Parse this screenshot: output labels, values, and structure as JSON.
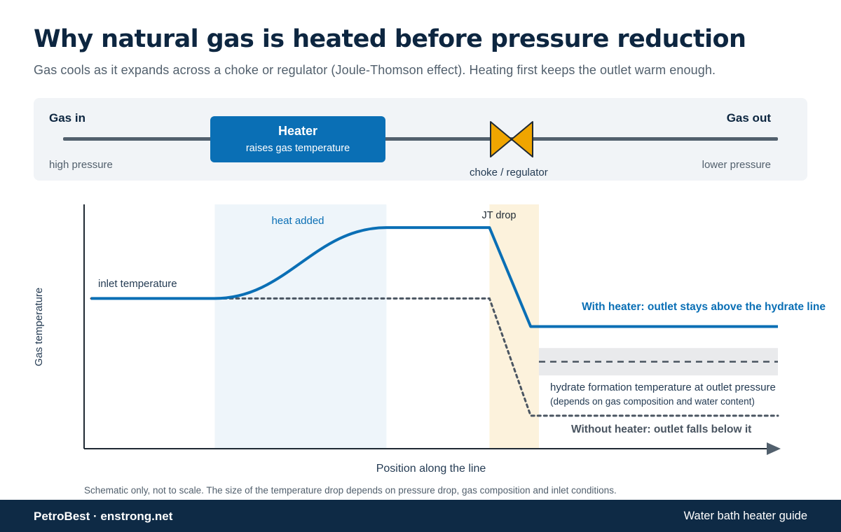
{
  "header": {
    "title": "Why natural gas is heated before pressure reduction",
    "subtitle": "Gas cools as it expands across a choke or regulator (Joule-Thomson effect). Heating first keeps the outlet warm enough."
  },
  "flow": {
    "gas_in": "Gas in",
    "gas_out": "Gas out",
    "high_pressure": "high pressure",
    "low_pressure": "lower pressure",
    "heater_title": "Heater",
    "heater_sub": "raises gas temperature",
    "valve_label": "choke / regulator",
    "valve_icon": "bowtie-valve-icon"
  },
  "chart": {
    "ylabel": "Gas temperature",
    "xlabel": "Position along the line",
    "heat_zone_label": "heat added",
    "jt_zone_label": "JT drop",
    "inlet_label": "inlet temperature",
    "with_heater_label": "With heater: outlet stays above the hydrate line",
    "hydrate_label": "hydrate formation temperature at outlet pressure",
    "hydrate_sub": "(depends on gas composition and water content)",
    "without_heater_label": "Without heater: outlet falls below it"
  },
  "chart_data": {
    "type": "line",
    "note": "schematic",
    "series": [
      {
        "name": "With heater",
        "style": "solid",
        "color": "#0a6fb5",
        "points": [
          [
            0,
            0.615
          ],
          [
            0.18,
            0.615
          ],
          [
            0.3,
            0.74
          ],
          [
            0.43,
            0.905
          ],
          [
            0.58,
            0.905
          ],
          [
            0.64,
            0.5
          ],
          [
            1,
            0.5
          ]
        ]
      },
      {
        "name": "Without heater",
        "style": "dotted",
        "color": "#4a5561",
        "points": [
          [
            0,
            0.615
          ],
          [
            0.58,
            0.615
          ],
          [
            0.64,
            0.135
          ],
          [
            1,
            0.135
          ]
        ]
      },
      {
        "name": "hydrate formation temperature",
        "style": "dashed",
        "color": "#4a5561",
        "points": [
          [
            0.652,
            0.356
          ],
          [
            1,
            0.356
          ]
        ]
      }
    ],
    "xlim": [
      0,
      1
    ],
    "ylim": [
      0,
      1
    ],
    "hydrate_band": [
      0.3,
      0.412
    ],
    "heat_zone": [
      0.18,
      0.43
    ],
    "jt_zone": [
      0.58,
      0.652
    ],
    "colors": {
      "with_heater": "#0a6fb5",
      "without_heater": "#4a5561",
      "heat_zone": "#eef5fa",
      "jt_zone": "#fcf2dc",
      "hydrate_band": "#e9eaec"
    }
  },
  "footnote": "Schematic only, not to scale. The size of the temperature drop depends on pressure drop, gas composition and inlet conditions.",
  "footer": {
    "brand": "PetroBest · enstrong.net",
    "guide": "Water bath heater guide"
  }
}
